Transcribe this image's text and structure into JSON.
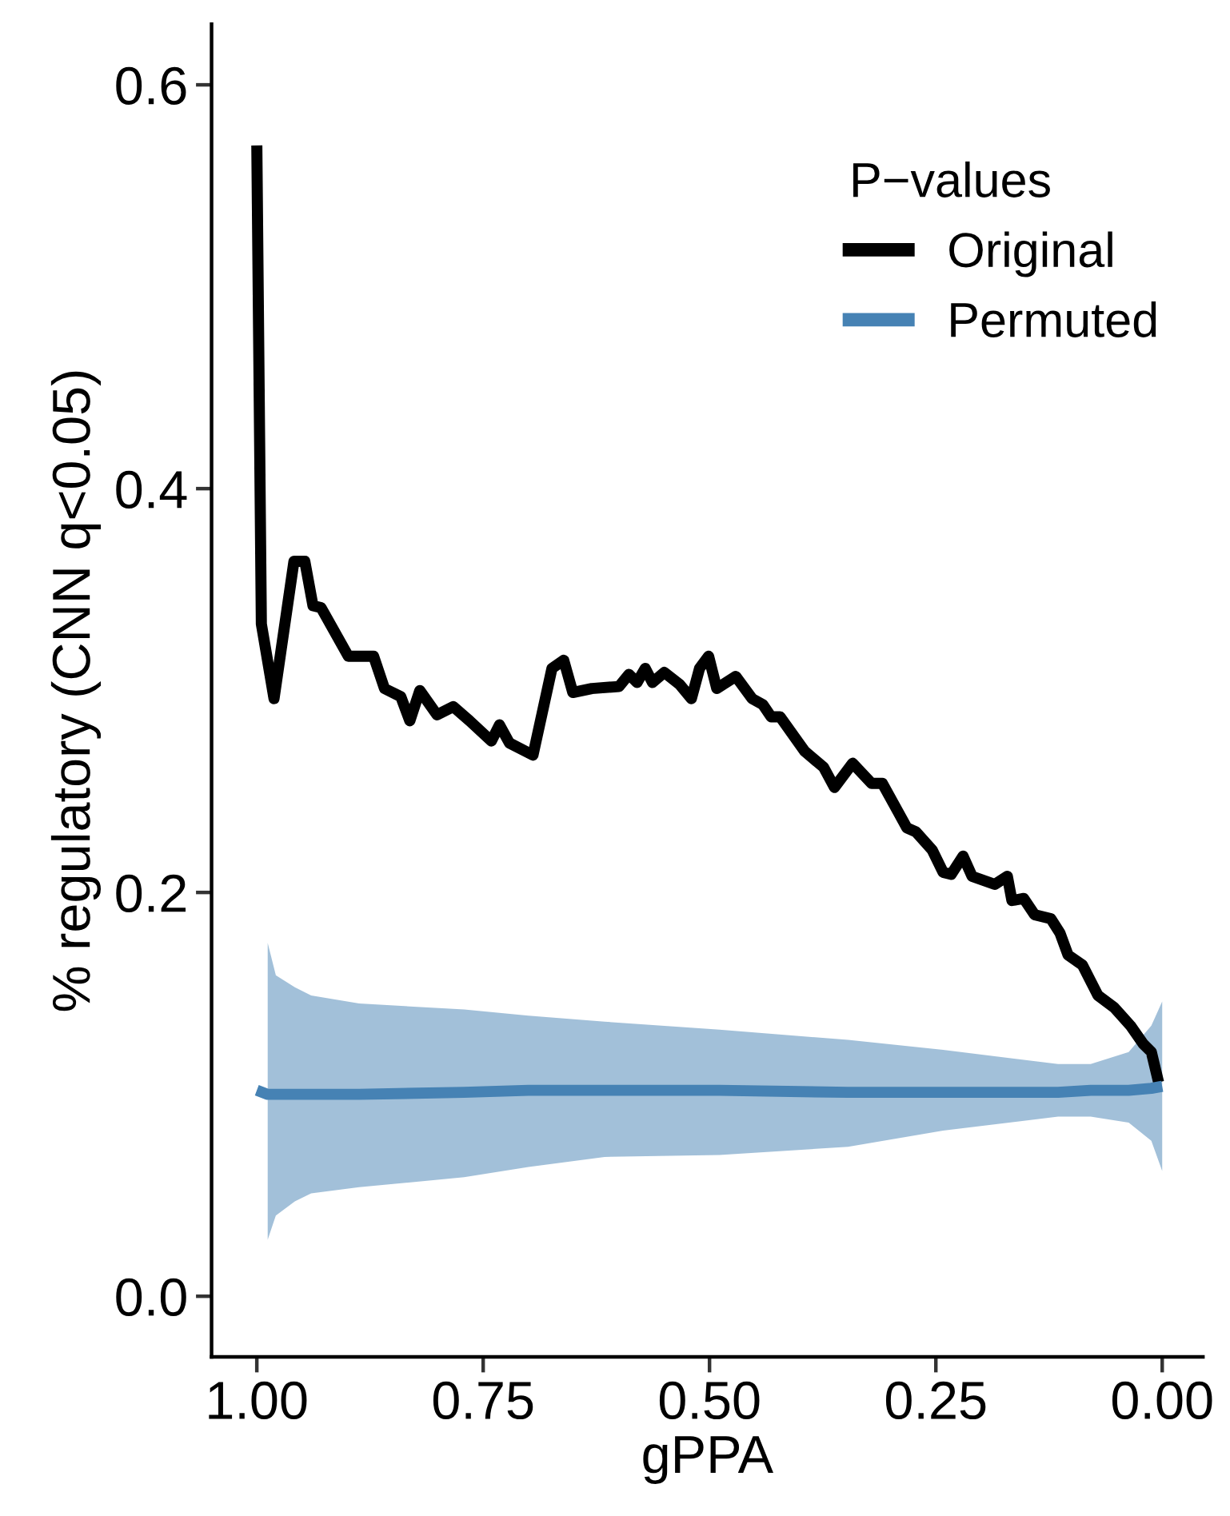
{
  "chart_data": {
    "type": "line",
    "xlabel": "gPPA",
    "ylabel": "% regulatory (CNN q<0.05)",
    "legend_title": "P−values",
    "legend": "top right",
    "grid": false,
    "xlim": [
      1.05,
      -0.045
    ],
    "xticks": [
      {
        "value": 1.0,
        "label": "1.00"
      },
      0.75,
      {
        "value": 0.5,
        "label": "0.50"
      },
      0.25,
      {
        "value": 0.0,
        "label": "0.00"
      }
    ],
    "ylim": [
      -0.03,
      0.63
    ],
    "yticks": [
      {
        "value": 0.0,
        "label": "0.0"
      },
      0.2,
      0.4,
      0.6
    ],
    "series": [
      {
        "name": "Original",
        "color": "#000000",
        "x": [
          1.0,
          0.995,
          0.981,
          0.959,
          0.947,
          0.938,
          0.929,
          0.899,
          0.871,
          0.859,
          0.841,
          0.831,
          0.82,
          0.801,
          0.783,
          0.765,
          0.741,
          0.732,
          0.721,
          0.695,
          0.674,
          0.661,
          0.651,
          0.63,
          0.6,
          0.589,
          0.58,
          0.571,
          0.563,
          0.55,
          0.533,
          0.52,
          0.511,
          0.501,
          0.492,
          0.471,
          0.453,
          0.441,
          0.432,
          0.422,
          0.395,
          0.374,
          0.362,
          0.342,
          0.321,
          0.309,
          0.282,
          0.272,
          0.254,
          0.242,
          0.233,
          0.22,
          0.21,
          0.185,
          0.171,
          0.166,
          0.153,
          0.141,
          0.123,
          0.113,
          0.104,
          0.088,
          0.071,
          0.053,
          0.035,
          0.021,
          0.012,
          0.004
        ],
        "values": [
          0.57,
          0.333,
          0.296,
          0.364,
          0.364,
          0.342,
          0.341,
          0.317,
          0.317,
          0.301,
          0.297,
          0.285,
          0.3,
          0.288,
          0.292,
          0.285,
          0.275,
          0.283,
          0.274,
          0.268,
          0.311,
          0.315,
          0.299,
          0.301,
          0.302,
          0.308,
          0.304,
          0.311,
          0.304,
          0.309,
          0.303,
          0.296,
          0.311,
          0.317,
          0.301,
          0.307,
          0.296,
          0.293,
          0.287,
          0.287,
          0.27,
          0.262,
          0.252,
          0.264,
          0.254,
          0.254,
          0.232,
          0.23,
          0.221,
          0.21,
          0.209,
          0.218,
          0.208,
          0.204,
          0.208,
          0.196,
          0.197,
          0.189,
          0.187,
          0.18,
          0.169,
          0.164,
          0.149,
          0.143,
          0.134,
          0.125,
          0.121,
          0.106
        ]
      },
      {
        "name": "Permuted",
        "color": "#4682b4",
        "x": [
          1.0,
          0.988,
          0.979,
          0.958,
          0.94,
          0.887,
          0.771,
          0.7,
          0.616,
          0.489,
          0.347,
          0.242,
          0.115,
          0.079,
          0.037,
          0.012,
          0.0
        ],
        "values": [
          0.102,
          0.1,
          0.1,
          0.1,
          0.1,
          0.1,
          0.101,
          0.102,
          0.102,
          0.102,
          0.101,
          0.101,
          0.101,
          0.102,
          0.102,
          0.103,
          0.104
        ],
        "lower": [
          null,
          0.028,
          0.04,
          0.047,
          0.051,
          0.054,
          0.059,
          0.064,
          0.069,
          0.07,
          0.074,
          0.082,
          0.089,
          0.089,
          0.086,
          0.077,
          0.062
        ],
        "upper": [
          null,
          0.175,
          0.159,
          0.153,
          0.149,
          0.145,
          0.142,
          0.139,
          0.136,
          0.132,
          0.127,
          0.122,
          0.115,
          0.115,
          0.121,
          0.134,
          0.146
        ]
      }
    ]
  }
}
